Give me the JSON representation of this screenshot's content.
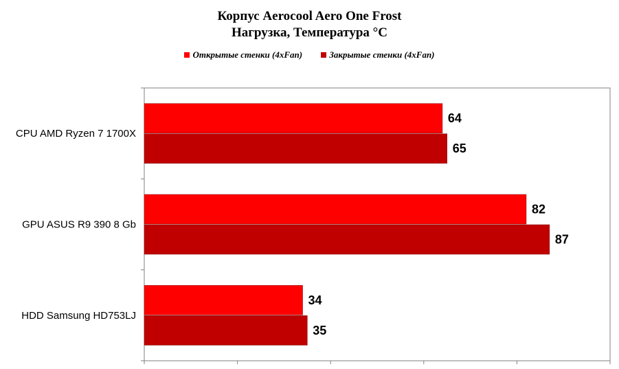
{
  "chart_data": {
    "type": "bar",
    "orientation": "horizontal",
    "title_line1": "Корпус Aerocool Aero One Frost",
    "title_line2": "Нагрузка, Температура  °C",
    "categories": [
      "CPU AMD Ryzen 7 1700X",
      "GPU ASUS R9 390 8 Gb",
      "HDD Samsung HD753LJ"
    ],
    "series": [
      {
        "name": "Открытые стенки (4xFan)",
        "color": "#ff0000",
        "values": [
          64,
          82,
          34
        ]
      },
      {
        "name": "Закрытые стенки (4xFan)",
        "color": "#c00000",
        "values": [
          65,
          87,
          35
        ]
      }
    ],
    "xlim": [
      0,
      100
    ],
    "grid": false,
    "legend_position": "top"
  }
}
